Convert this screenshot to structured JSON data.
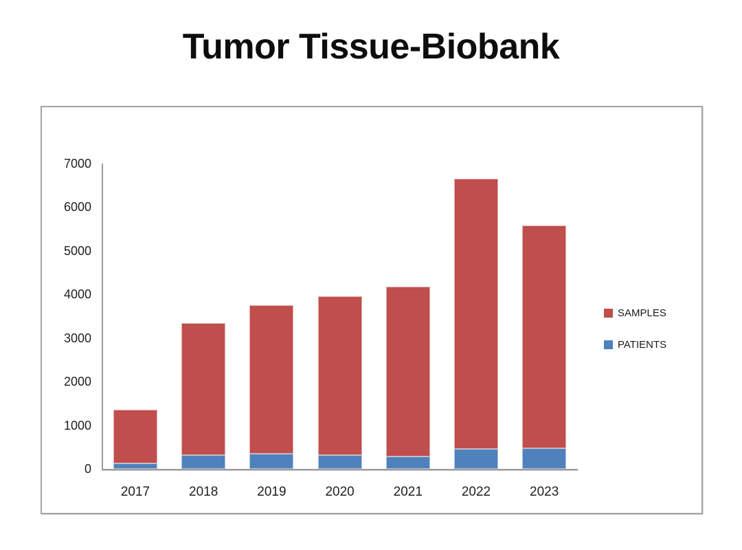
{
  "title": "Tumor Tissue-Biobank",
  "chart_data": {
    "type": "bar",
    "stacked": true,
    "title": "Tumor Tissue-Biobank",
    "categories": [
      "2017",
      "2018",
      "2019",
      "2020",
      "2021",
      "2022",
      "2023"
    ],
    "series": [
      {
        "name": "SAMPLES",
        "color": "#bf4e4c",
        "values": [
          1220,
          3030,
          3400,
          3630,
          3895,
          6200,
          5105
        ]
      },
      {
        "name": "PATIENTS",
        "color": "#4f81bd",
        "values": [
          130,
          320,
          350,
          320,
          280,
          450,
          470
        ]
      }
    ],
    "stack_order": [
      "PATIENTS",
      "SAMPLES"
    ],
    "stacked_totals": [
      1350,
      3350,
      3750,
      3950,
      4175,
      6650,
      5575
    ],
    "xlabel": "",
    "ylabel": "",
    "ylim": [
      0,
      7000
    ],
    "ytick_step": 1000,
    "ytick_labels": [
      "0",
      "1000",
      "2000",
      "3000",
      "4000",
      "5000",
      "6000",
      "7000"
    ],
    "grid": false,
    "legend_position": "right"
  }
}
